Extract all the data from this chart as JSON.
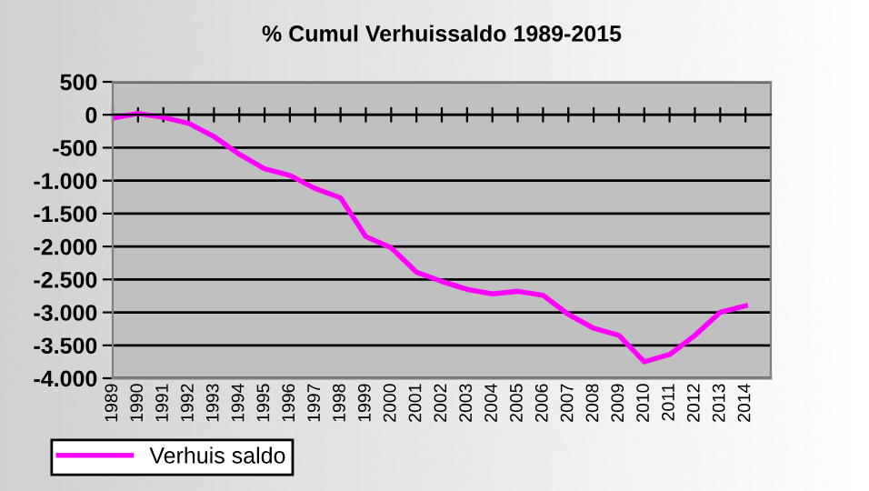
{
  "chart_data": {
    "type": "line",
    "title": "% Cumul Verhuissaldo 1989-2015",
    "categories": [
      "1989",
      "1990",
      "1991",
      "1992",
      "1993",
      "1994",
      "1995",
      "1996",
      "1997",
      "1998",
      "1999",
      "2000",
      "2001",
      "2002",
      "2003",
      "2004",
      "2005",
      "2006",
      "2007",
      "2008",
      "2009",
      "2010",
      "2011",
      "2012",
      "2013",
      "2014"
    ],
    "series": [
      {
        "name": "Verhuis saldo",
        "color": "#ff00ff",
        "values": [
          -50,
          20,
          -40,
          -130,
          -330,
          -600,
          -820,
          -920,
          -1120,
          -1260,
          -1850,
          -2020,
          -2390,
          -2530,
          -2650,
          -2720,
          -2680,
          -2740,
          -3030,
          -3240,
          -3350,
          -3750,
          -3640,
          -3350,
          -3000,
          -2900
        ]
      }
    ],
    "ylim": [
      -4000,
      500
    ],
    "yticks": [
      500,
      0,
      {
        "value": -500,
        "label": "-500"
      },
      {
        "value": -1000,
        "label": "-1.000"
      },
      {
        "value": -1500,
        "label": "-1.500"
      },
      {
        "value": -2000,
        "label": "-2.000"
      },
      {
        "value": -2500,
        "label": "-2.500"
      },
      {
        "value": -3000,
        "label": "-3.000"
      },
      {
        "value": -3500,
        "label": "-3.500"
      },
      {
        "value": -4000,
        "label": "-4.000"
      }
    ],
    "grid": "y",
    "legend": "bottom left",
    "marker": "none",
    "line_style": "solid"
  }
}
